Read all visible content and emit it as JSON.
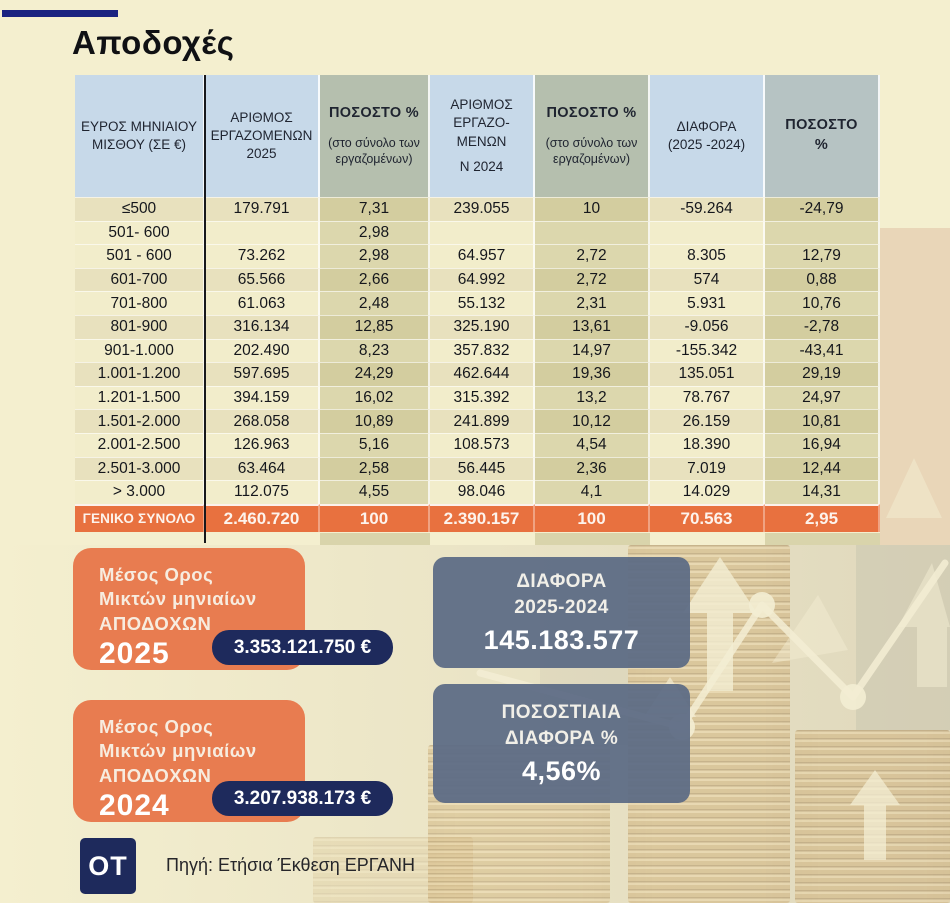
{
  "title": "Αποδοχές",
  "colors": {
    "background": "#f4efcf",
    "accent_orange": "#e8713f",
    "card_orange": "#e87c50",
    "navy": "#1e2a5c",
    "topline_navy": "#1a2380",
    "header_blue": "#c7d9e9",
    "header_olive": "#b5bfae",
    "header_gray": "#b6c3c3",
    "slate_card": "#5c6b87"
  },
  "table": {
    "columns": [
      {
        "variant": "blue",
        "lines": [
          "ΕΥΡΟΣ ΜΗΝΙΑΙΟΥ",
          "ΜΙΣΘΟΥ (ΣΕ €)"
        ]
      },
      {
        "variant": "blue",
        "lines": [
          "ΑΡΙΘΜΟΣ",
          "ΕΡΓΑΖΟΜΕΝΩΝ",
          "2025"
        ]
      },
      {
        "variant": "olive",
        "title": "ΠΟΣΟΣΤΟ %",
        "sub": [
          "(στο σύνολο των",
          "εργαζομένων)"
        ]
      },
      {
        "variant": "blue",
        "lines": [
          "ΑΡΙΘΜΟΣ",
          "ΕΡΓΑΖΟ-",
          "ΜΕΝΩΝ",
          "",
          "Ν 2024"
        ]
      },
      {
        "variant": "olive",
        "title": "ΠΟΣΟΣΤΟ %",
        "sub": [
          "(στο σύνολο των",
          "εργαζομένων)"
        ]
      },
      {
        "variant": "blue",
        "lines": [
          "ΔΙΑΦΟΡΑ",
          "(2025 -2024)"
        ]
      },
      {
        "variant": "gray",
        "bold": true,
        "lines": [
          "ΠΟΣΟΣΤΟ",
          "%"
        ]
      }
    ],
    "rows": [
      [
        "≤500",
        "179.791",
        "7,31",
        "239.055",
        "10",
        "-59.264",
        "-24,79"
      ],
      [
        "501- 600",
        "",
        "2,98",
        "",
        "",
        "",
        ""
      ],
      [
        "501 - 600",
        "73.262",
        "2,98",
        "64.957",
        "2,72",
        "8.305",
        "12,79"
      ],
      [
        "601-700",
        "65.566",
        "2,66",
        "64.992",
        "2,72",
        "574",
        "0,88"
      ],
      [
        "701-800",
        "61.063",
        "2,48",
        "55.132",
        "2,31",
        "5.931",
        "10,76"
      ],
      [
        "801-900",
        "316.134",
        "12,85",
        "325.190",
        "13,61",
        "-9.056",
        "-2,78"
      ],
      [
        "901-1.000",
        "202.490",
        "8,23",
        "357.832",
        "14,97",
        "-155.342",
        "-43,41"
      ],
      [
        "1.001-1.200",
        "597.695",
        "24,29",
        "462.644",
        "19,36",
        "135.051",
        "29,19"
      ],
      [
        "1.201-1.500",
        "394.159",
        "16,02",
        "315.392",
        "13,2",
        "78.767",
        "24,97"
      ],
      [
        "1.501-2.000",
        "268.058",
        "10,89",
        "241.899",
        "10,12",
        "26.159",
        "10,81"
      ],
      [
        "2.001-2.500",
        "126.963",
        "5,16",
        "108.573",
        "4,54",
        "18.390",
        "16,94"
      ],
      [
        "2.501-3.000",
        "63.464",
        "2,58",
        "56.445",
        "2,36",
        "7.019",
        "12,44"
      ],
      [
        "> 3.000",
        "112.075",
        "4,55",
        "98.046",
        "4,1",
        "14.029",
        "14,31"
      ]
    ],
    "total": [
      "ΓΕΝΙΚΟ ΣΥΝΟΛΟ",
      "2.460.720",
      "100",
      "2.390.157",
      "100",
      "70.563",
      "2,95"
    ]
  },
  "chart_data": {
    "type": "table",
    "title": "Αποδοχές",
    "categories": [
      "≤500",
      "501- 600",
      "501 - 600",
      "601-700",
      "701-800",
      "801-900",
      "901-1.000",
      "1.001-1.200",
      "1.201-1.500",
      "1.501-2.000",
      "2.001-2.500",
      "2.501-3.000",
      "> 3.000"
    ],
    "series": [
      {
        "name": "ΑΡΙΘΜΟΣ ΕΡΓΑΖΟΜΕΝΩΝ 2025",
        "values": [
          179791,
          null,
          73262,
          65566,
          61063,
          316134,
          202490,
          597695,
          394159,
          268058,
          126963,
          63464,
          112075
        ]
      },
      {
        "name": "ΠΟΣΟΣΤΟ % (στο σύνολο των εργαζομένων) 2025",
        "values": [
          7.31,
          2.98,
          2.98,
          2.66,
          2.48,
          12.85,
          8.23,
          24.29,
          16.02,
          10.89,
          5.16,
          2.58,
          4.55
        ]
      },
      {
        "name": "ΑΡΙΘΜΟΣ ΕΡΓΑΖΟΜΕΝΩΝ Ν 2024",
        "values": [
          239055,
          null,
          64957,
          64992,
          55132,
          325190,
          357832,
          462644,
          315392,
          241899,
          108573,
          56445,
          98046
        ]
      },
      {
        "name": "ΠΟΣΟΣΤΟ % (στο σύνολο των εργαζομένων) 2024",
        "values": [
          10,
          null,
          2.72,
          2.72,
          2.31,
          13.61,
          14.97,
          19.36,
          13.2,
          10.12,
          4.54,
          2.36,
          4.1
        ]
      },
      {
        "name": "ΔΙΑΦΟΡΑ (2025 -2024)",
        "values": [
          -59264,
          null,
          8305,
          574,
          5931,
          -9056,
          -155342,
          135051,
          78767,
          26159,
          18390,
          7019,
          14029
        ]
      },
      {
        "name": "ΠΟΣΟΣΤΟ %",
        "values": [
          -24.79,
          null,
          12.79,
          0.88,
          10.76,
          -2.78,
          -43.41,
          29.19,
          24.97,
          10.81,
          16.94,
          12.44,
          14.31
        ]
      }
    ],
    "totals": {
      "label": "ΓΕΝΙΚΟ ΣΥΝΟΛΟ",
      "emp_2025": 2460720,
      "pct_2025": 100,
      "emp_2024": 2390157,
      "pct_2024": 100,
      "diff": 70563,
      "diff_pct": 2.95
    }
  },
  "cards": {
    "avg_2025": {
      "line1": "Μέσος Ορος",
      "line2": "Μικτών μηνιαίων",
      "line3": "ΑΠΟΔΟΧΩΝ",
      "year": "2025",
      "value": "3.353.121.750 €"
    },
    "avg_2024": {
      "line1": "Μέσος Ορος",
      "line2": "Μικτών μηνιαίων",
      "line3": "ΑΠΟΔΟΧΩΝ",
      "year": "2024",
      "value": "3.207.938.173 €"
    },
    "diff": {
      "line1": "ΔΙΑΦΟΡΑ",
      "line2": "2025-2024",
      "value": "145.183.577"
    },
    "pct": {
      "line1": "ΠΟΣΟΣΤΙΑΙΑ",
      "line2": "ΔΙΑΦΟΡΑ %",
      "value": "4,56%"
    }
  },
  "footer": {
    "logo": "OT",
    "source": "Πηγή: Ετήσια Έκθεση ΕΡΓΑΝΗ"
  }
}
